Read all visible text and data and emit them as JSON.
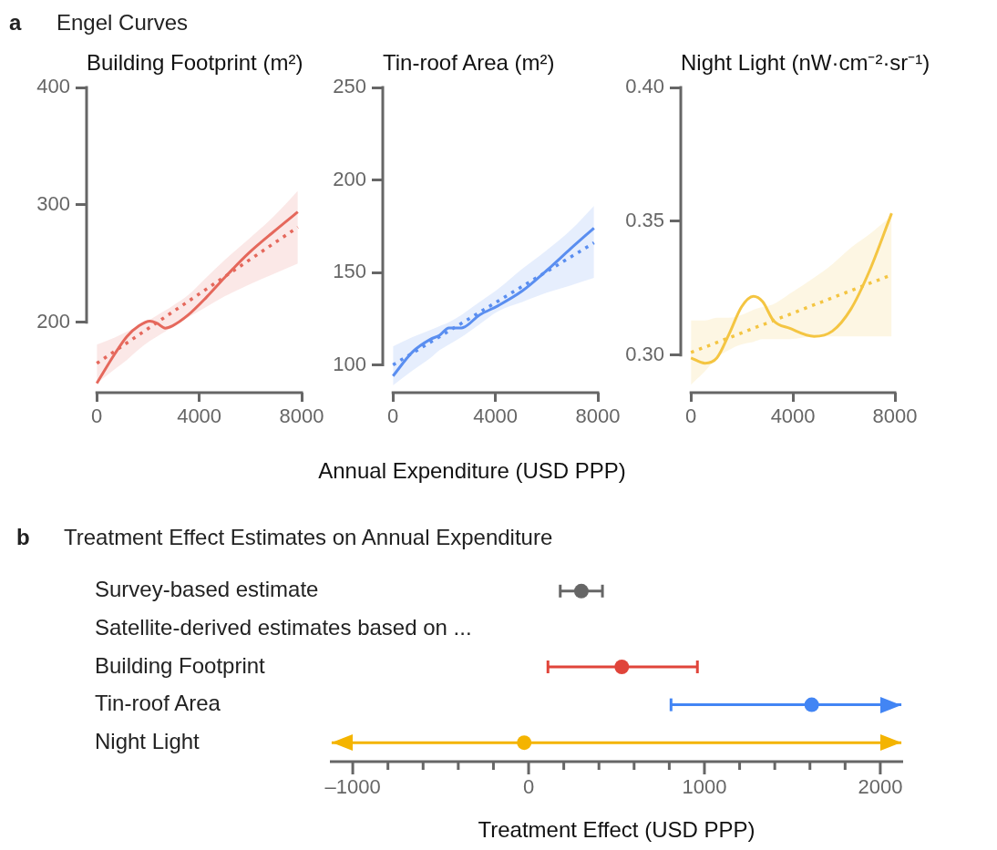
{
  "chart_data": [
    {
      "type": "line",
      "title": "Building Footprint (m²)",
      "annotations": [
        "a",
        "Engel Curves"
      ],
      "xlim": [
        -400,
        8000
      ],
      "xticks": [
        0,
        4000,
        8000
      ],
      "ylim": [
        140,
        400
      ],
      "yticks": [
        200,
        300,
        400
      ],
      "grid": false,
      "marker": "none",
      "series": [
        {
          "color": "#e5685c",
          "line_style": "solid",
          "x": [
            0,
            700,
            1180,
            1650,
            2070,
            2360,
            2670,
            2960,
            3560,
            4270,
            4990,
            5940,
            6900,
            7850
          ],
          "values": [
            148,
            173,
            188,
            197,
            201,
            199,
            195,
            197,
            206,
            221,
            238,
            259,
            277,
            294
          ],
          "lower": [
            148,
            160,
            168,
            177,
            184,
            188,
            192,
            196,
            204,
            213,
            222,
            232,
            241,
            250
          ],
          "upper": [
            181,
            187,
            192,
            197,
            202,
            206,
            210,
            214,
            223,
            238,
            253,
            271,
            290,
            312
          ]
        },
        {
          "color": "#e5685c",
          "line_style": "dotted",
          "x": [
            0,
            7850
          ],
          "values": [
            165,
            281
          ]
        }
      ]
    },
    {
      "type": "line",
      "title": "Tin-roof Area (m²)",
      "xlabel": "Annual Expenditure (USD PPP)",
      "xlim": [
        -400,
        8000
      ],
      "xticks": [
        0,
        4000,
        8000
      ],
      "ylim": [
        85,
        250
      ],
      "yticks": [
        100,
        150,
        200,
        250
      ],
      "grid": false,
      "marker": "none",
      "series": [
        {
          "color": "#5a8ef0",
          "line_style": "solid",
          "x": [
            0,
            760,
            1480,
            1820,
            2180,
            2670,
            3380,
            4100,
            5050,
            6000,
            6950,
            7850
          ],
          "values": [
            94,
            107,
            114,
            116,
            120,
            120,
            127,
            132,
            140,
            151,
            163,
            174
          ],
          "lower": [
            89,
            97,
            104,
            108,
            111,
            115,
            122,
            129,
            134,
            139,
            143,
            147
          ],
          "upper": [
            110,
            115,
            119,
            121,
            123,
            127,
            134,
            141,
            152,
            162,
            173,
            186
          ]
        },
        {
          "color": "#5a8ef0",
          "line_style": "dotted",
          "x": [
            0,
            7850
          ],
          "values": [
            100,
            166
          ]
        }
      ]
    },
    {
      "type": "line",
      "title": "Night Light (nW·cm⁻²·sr⁻¹)",
      "xlim": [
        -400,
        8000
      ],
      "xticks": [
        0,
        4000,
        8000
      ],
      "ylim": [
        0.286,
        0.4
      ],
      "yticks": [
        {
          "value": 0.3,
          "label": "0.30"
        },
        0.35,
        {
          "value": 0.4,
          "label": "0.40"
        }
      ],
      "grid": false,
      "marker": "none",
      "series": [
        {
          "color": "#f4c542",
          "line_style": "solid",
          "x": [
            0,
            550,
            1020,
            1500,
            1980,
            2450,
            2810,
            3230,
            3880,
            4830,
            5550,
            6260,
            6980,
            7870
          ],
          "values": [
            0.299,
            0.297,
            0.299,
            0.308,
            0.318,
            0.322,
            0.32,
            0.313,
            0.31,
            0.307,
            0.309,
            0.317,
            0.331,
            0.353
          ],
          "lower": [
            0.289,
            0.294,
            0.299,
            0.302,
            0.304,
            0.305,
            0.306,
            0.306,
            0.306,
            0.307,
            0.307,
            0.307,
            0.307,
            0.307
          ],
          "upper": [
            0.313,
            0.313,
            0.314,
            0.314,
            0.315,
            0.317,
            0.318,
            0.319,
            0.323,
            0.329,
            0.334,
            0.34,
            0.345,
            0.352
          ]
        },
        {
          "color": "#f4c542",
          "line_style": "dotted",
          "x": [
            0,
            7870
          ],
          "values": [
            0.301,
            0.33
          ]
        }
      ]
    },
    {
      "type": "scatter",
      "orientation": "horizontal",
      "title": "Treatment Effect Estimates on Annual Expenditure",
      "annotations": [
        "b"
      ],
      "xlabel": "Treatment Effect (USD PPP)",
      "categories": [
        "Survey-based estimate",
        "Satellite-derived estimates based on ...",
        "Building Footprint",
        "Tin-roof Area",
        "Night Light"
      ],
      "values": [
        300,
        null,
        530,
        1610,
        -25
      ],
      "errors": [
        [
          180,
          420
        ],
        null,
        [
          110,
          960
        ],
        [
          810,
          2120
        ],
        [
          -1120,
          2120
        ]
      ],
      "colors": [
        "#666666",
        "#666666",
        "#e0443a",
        "#4285f4",
        "#f4b400"
      ],
      "xlim": [
        -1130,
        2130
      ],
      "xticks": [
        {
          "value": -1000,
          "label": "–1000"
        },
        {
          "value": -800,
          "label": null
        },
        {
          "value": -600,
          "label": null
        },
        {
          "value": -400,
          "label": null
        },
        {
          "value": -200,
          "label": null
        },
        0,
        {
          "value": 200,
          "label": null
        },
        {
          "value": 400,
          "label": null
        },
        {
          "value": 600,
          "label": null
        },
        {
          "value": 800,
          "label": null
        },
        1000,
        {
          "value": 1200,
          "label": null
        },
        {
          "value": 1400,
          "label": null
        },
        {
          "value": 1600,
          "label": null
        },
        {
          "value": 1800,
          "label": null
        },
        2000
      ],
      "grid": false,
      "marker": "circle"
    }
  ]
}
